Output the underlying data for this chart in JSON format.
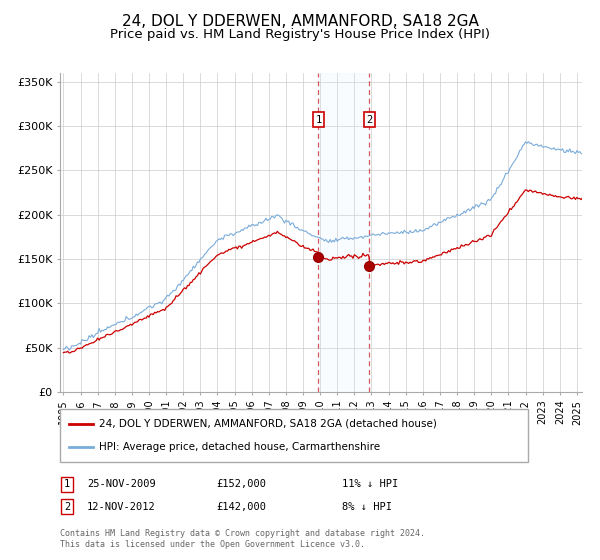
{
  "title": "24, DOL Y DDERWEN, AMMANFORD, SA18 2GA",
  "subtitle": "Price paid vs. HM Land Registry's House Price Index (HPI)",
  "title_fontsize": 11,
  "subtitle_fontsize": 9.5,
  "red_label": "24, DOL Y DDERWEN, AMMANFORD, SA18 2GA (detached house)",
  "blue_label": "HPI: Average price, detached house, Carmarthenshire",
  "transaction1_date": "25-NOV-2009",
  "transaction1_price": "£152,000",
  "transaction1_hpi": "11% ↓ HPI",
  "transaction1_year": 2009.9,
  "transaction1_price_val": 152000,
  "transaction2_date": "12-NOV-2012",
  "transaction2_price": "£142,000",
  "transaction2_hpi": "8% ↓ HPI",
  "transaction2_year": 2012.87,
  "transaction2_price_val": 142000,
  "ylim_min": 0,
  "ylim_max": 360000,
  "yticks": [
    0,
    50000,
    100000,
    150000,
    200000,
    250000,
    300000,
    350000
  ],
  "ytick_labels": [
    "£0",
    "£50K",
    "£100K",
    "£150K",
    "£200K",
    "£250K",
    "£300K",
    "£350K"
  ],
  "start_year": 1995,
  "end_year": 2025,
  "background_color": "#ffffff",
  "grid_color": "#cccccc",
  "red_color": "#cc0000",
  "blue_color": "#7aacda",
  "shade_color": "#ddeeff",
  "footer_text": "Contains HM Land Registry data © Crown copyright and database right 2024.\nThis data is licensed under the Open Government Licence v3.0."
}
